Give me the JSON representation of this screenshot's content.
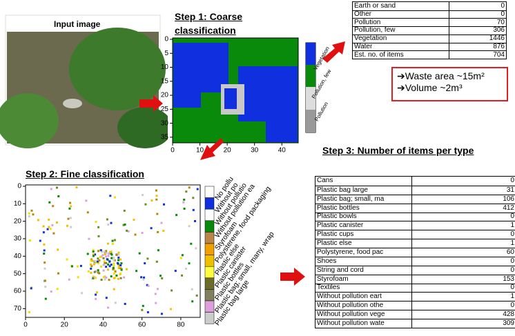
{
  "input_panel": {
    "title": "Input image"
  },
  "step1": {
    "title": "Step 1: Coarse classification",
    "xticks": [
      0,
      10,
      20,
      30,
      40
    ],
    "yticks": [
      0,
      5,
      10,
      15,
      20,
      25,
      30,
      35
    ],
    "colorbar_labels": [
      "Vegetation",
      "Pollution, few",
      "Pollution"
    ]
  },
  "table1": {
    "rows": [
      [
        "Earth or sand",
        0
      ],
      [
        "Other",
        0
      ],
      [
        "Pollution",
        70
      ],
      [
        "Pollution, few",
        306
      ],
      [
        "Vegetation",
        1446
      ],
      [
        "Water",
        876
      ],
      [
        "Est. no. of items",
        704
      ]
    ]
  },
  "callout": {
    "lines": [
      "➔Waste area ~15m²",
      "➔Volume ~2m³"
    ]
  },
  "step2": {
    "title": "Step 2: Fine classification",
    "xticks": [
      0,
      20,
      40,
      60,
      80
    ],
    "yticks": [
      0,
      10,
      20,
      30,
      40,
      50,
      60,
      70
    ],
    "legend_labels": [
      "No pollu",
      "Without po",
      "Without pollutio",
      "Without pollution ea",
      "Styrofoam",
      "Polysterene, food packaging",
      "Plastic else",
      "Plastic canister",
      "Plastic bottles",
      "Plastic bag; small, many, wrap",
      "Plastic bag large"
    ]
  },
  "step3": {
    "title": "Step 3: Number of items per type",
    "rows": [
      [
        "Cans",
        0
      ],
      [
        "Plastic bag large",
        31
      ],
      [
        "Plastic bag; small, ma",
        106
      ],
      [
        "Plastic bottles",
        412
      ],
      [
        "Plastic bowls",
        0
      ],
      [
        "Plastic canister",
        1
      ],
      [
        "Plastic cups",
        0
      ],
      [
        "Plastic else",
        1
      ],
      [
        "Polystyrene, food pac",
        60
      ],
      [
        "Shoes",
        0
      ],
      [
        "String and cord",
        0
      ],
      [
        "Styrofoam",
        153
      ],
      [
        "Textiles",
        0
      ],
      [
        "Without pollution eart",
        1
      ],
      [
        "Without pollution othe",
        0
      ],
      [
        "Without pollution vege",
        428
      ],
      [
        "Without pollution wate",
        309
      ]
    ]
  }
}
